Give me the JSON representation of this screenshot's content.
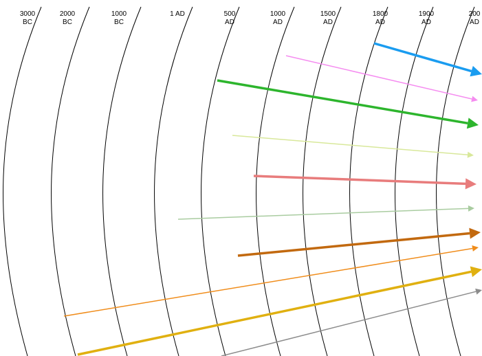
{
  "era_labels": [
    {
      "line1": "3000",
      "line2": "BC"
    },
    {
      "line1": "2000",
      "line2": "BC"
    },
    {
      "line1": "1000",
      "line2": "BC"
    },
    {
      "line1": "1 AD",
      "line2": ""
    },
    {
      "line1": "500",
      "line2": "AD"
    },
    {
      "line1": "1000",
      "line2": "AD"
    },
    {
      "line1": "1500",
      "line2": "AD"
    },
    {
      "line1": "1800",
      "line2": "AD"
    },
    {
      "line1": "1900",
      "line2": "AD"
    },
    {
      "line1": "200",
      "line2": "AD"
    }
  ],
  "arrows": [
    {
      "color": "#1a9cf0",
      "weight": "thick"
    },
    {
      "color": "#f58cf0",
      "weight": "thin"
    },
    {
      "color": "#2db52d",
      "weight": "thick"
    },
    {
      "color": "#d8e89a",
      "weight": "thin"
    },
    {
      "color": "#e87c7c",
      "weight": "thick"
    },
    {
      "color": "#a9cca0",
      "weight": "thin"
    },
    {
      "color": "#c2690f",
      "weight": "thick"
    },
    {
      "color": "#f08c1a",
      "weight": "thin"
    },
    {
      "color": "#e0b010",
      "weight": "thick"
    },
    {
      "color": "#8c8c8c",
      "weight": "thin"
    }
  ]
}
